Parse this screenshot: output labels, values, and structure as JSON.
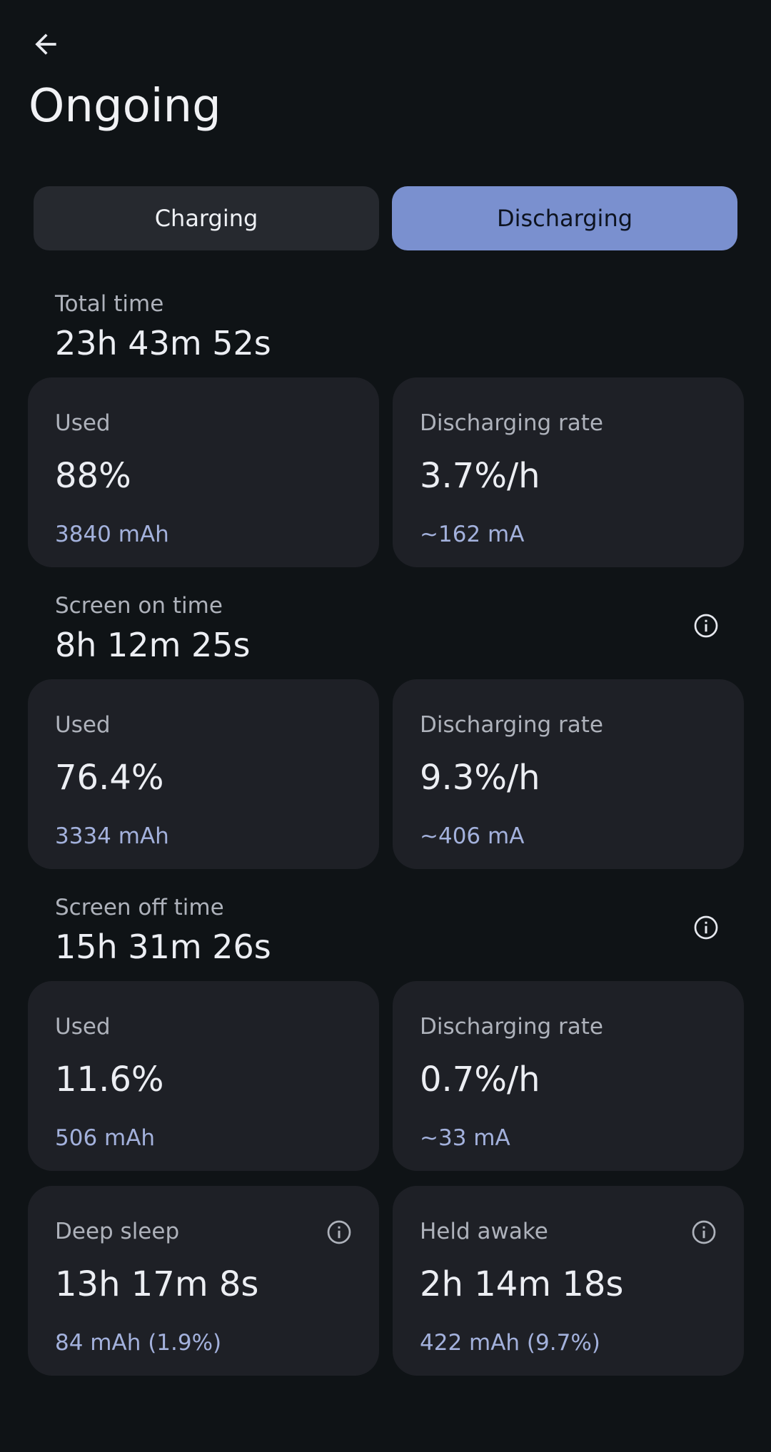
{
  "header": {
    "back_icon": "arrow-left-icon",
    "title": "Ongoing"
  },
  "tabs": [
    {
      "label": "Charging",
      "selected": false
    },
    {
      "label": "Discharging",
      "selected": true
    }
  ],
  "colors": {
    "background": "#0f1316",
    "card": "#1e2026",
    "accent": "#7a90cf",
    "subtext": "#a3b1dc"
  },
  "total": {
    "label": "Total time",
    "value": "23h 43m 52s",
    "used": {
      "label": "Used",
      "value": "88%",
      "sub": "3840 mAh"
    },
    "rate": {
      "label": "Discharging rate",
      "value": "3.7%/h",
      "sub": "~162 mA"
    }
  },
  "screen_on": {
    "label": "Screen on time",
    "value": "8h 12m 25s",
    "info_icon": "info-circle-icon",
    "used": {
      "label": "Used",
      "value": "76.4%",
      "sub": "3334 mAh"
    },
    "rate": {
      "label": "Discharging rate",
      "value": "9.3%/h",
      "sub": "~406 mA"
    }
  },
  "screen_off": {
    "label": "Screen off time",
    "value": "15h 31m 26s",
    "info_icon": "info-circle-icon",
    "used": {
      "label": "Used",
      "value": "11.6%",
      "sub": "506 mAh"
    },
    "rate": {
      "label": "Discharging rate",
      "value": "0.7%/h",
      "sub": "~33 mA"
    }
  },
  "deep_sleep": {
    "label": "Deep sleep",
    "value": "13h 17m 8s",
    "sub": "84 mAh (1.9%)",
    "info_icon": "info-circle-icon"
  },
  "held_awake": {
    "label": "Held awake",
    "value": "2h 14m 18s",
    "sub": "422 mAh (9.7%)",
    "info_icon": "info-circle-icon"
  }
}
